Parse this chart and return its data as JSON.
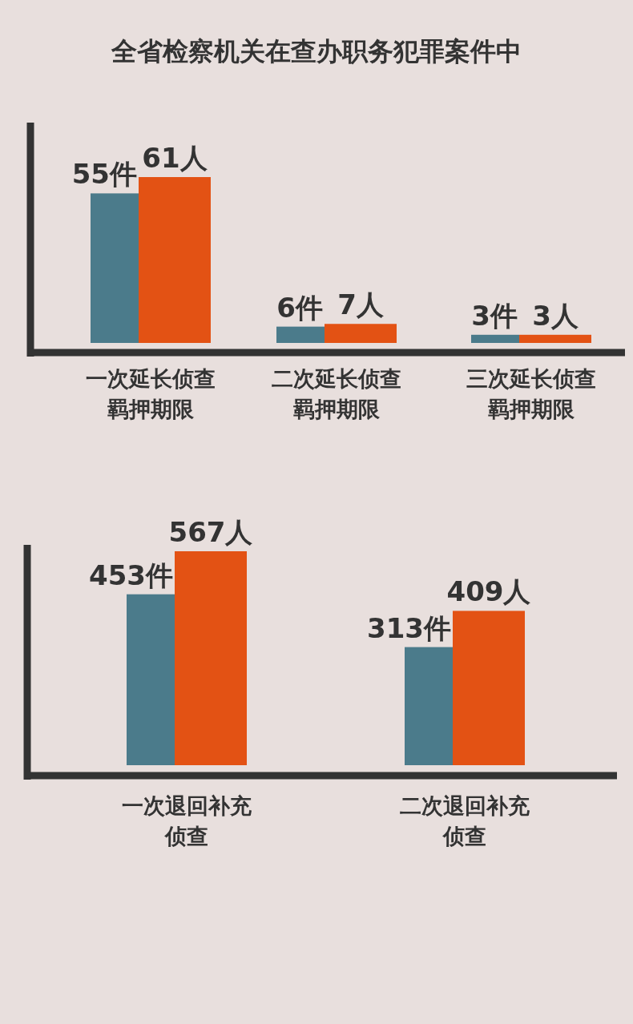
{
  "chart_data": [
    {
      "type": "bar",
      "title": "全省检察机关在查办职务犯罪案件中",
      "categories": [
        "一次延长侦查羁押期限",
        "二次延长侦查羁押期限",
        "三次延长侦查羁押期限"
      ],
      "series": [
        {
          "color": "#4b7b8b",
          "values": [
            55,
            6,
            3
          ],
          "value_labels": [
            "55件",
            "6件",
            "3件"
          ]
        },
        {
          "color": "#e35214",
          "values": [
            61,
            7,
            3
          ],
          "value_labels": [
            "61人",
            "7人",
            "3人"
          ]
        }
      ]
    },
    {
      "type": "bar",
      "categories": [
        "一次退回补充侦查",
        "二次退回补充侦查"
      ],
      "series": [
        {
          "color": "#4b7b8b",
          "values": [
            453,
            313
          ],
          "value_labels": [
            "453件",
            "313件"
          ]
        },
        {
          "color": "#e35214",
          "values": [
            567,
            409
          ],
          "value_labels": [
            "567人",
            "409人"
          ]
        }
      ]
    }
  ]
}
